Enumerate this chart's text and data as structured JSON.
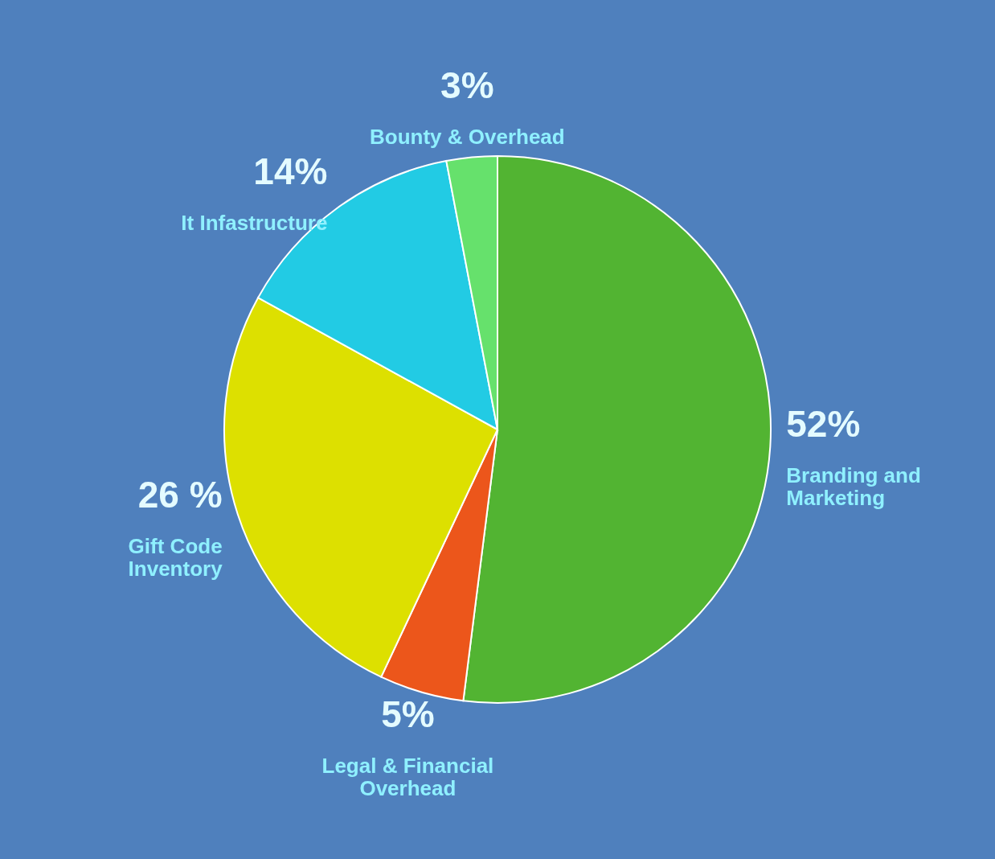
{
  "chart_data": {
    "type": "pie",
    "categories": [
      "Branding and Marketing",
      "Legal & Financial Overhead",
      "Gift Code Inventory",
      "It Infastructure",
      "Bounty & Overhead"
    ],
    "values": [
      52,
      5,
      26,
      14,
      3
    ],
    "value_labels": [
      "52%",
      "5%",
      "26 %",
      "14%",
      "3%"
    ],
    "colors": [
      "#52b432",
      "#ec561b",
      "#dde000",
      "#22cbe4",
      "#66e16c"
    ]
  }
}
